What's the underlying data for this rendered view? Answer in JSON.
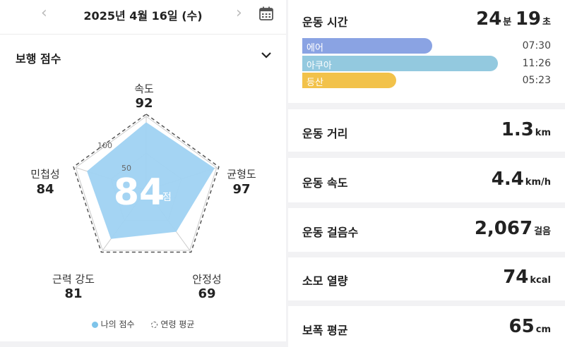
{
  "header": {
    "date": "2025년 4월 16일 (수)",
    "prev_icon": "chevron-left-icon",
    "next_icon": "chevron-right-icon",
    "calendar_icon": "calendar-icon"
  },
  "walking_score": {
    "title": "보행 점수",
    "total": "84",
    "total_unit": "점",
    "scale_100": "100",
    "scale_50": "50",
    "axes": [
      {
        "label": "속도",
        "value": "92",
        "score": 92,
        "avg": 100
      },
      {
        "label": "균형도",
        "value": "97",
        "score": 97,
        "avg": 100
      },
      {
        "label": "안정성",
        "value": "69",
        "score": 69,
        "avg": 100
      },
      {
        "label": "근력 강도",
        "value": "81",
        "score": 81,
        "avg": 100
      },
      {
        "label": "민첩성",
        "value": "84",
        "score": 84,
        "avg": 100
      }
    ],
    "legend": {
      "mine": "나의 점수",
      "average": "연령 평균"
    },
    "colors": {
      "fill": "#9fd2f2",
      "dashed": "#555555",
      "grid": "#cccccc"
    }
  },
  "exercise_time": {
    "label": "운동 시간",
    "min_value": "24",
    "min_unit": "분",
    "sec_value": "19",
    "sec_unit": "초",
    "activities": [
      {
        "name": "에어",
        "time": "07:30",
        "color": "#8aa3e3",
        "fraction": 0.51
      },
      {
        "name": "아쿠아",
        "time": "11:26",
        "color": "#93c9df",
        "fraction": 0.77
      },
      {
        "name": "등산",
        "time": "05:23",
        "color": "#f2c24a",
        "fraction": 0.37
      }
    ]
  },
  "metrics": [
    {
      "label": "운동 거리",
      "value": "1.3",
      "unit": "km"
    },
    {
      "label": "운동 속도",
      "value": "4.4",
      "unit": "km/h"
    },
    {
      "label": "운동 걸음수",
      "value": "2,067",
      "unit": "걸음"
    },
    {
      "label": "소모 열량",
      "value": "74",
      "unit": "kcal"
    },
    {
      "label": "보폭 평균",
      "value": "65",
      "unit": "cm"
    }
  ]
}
